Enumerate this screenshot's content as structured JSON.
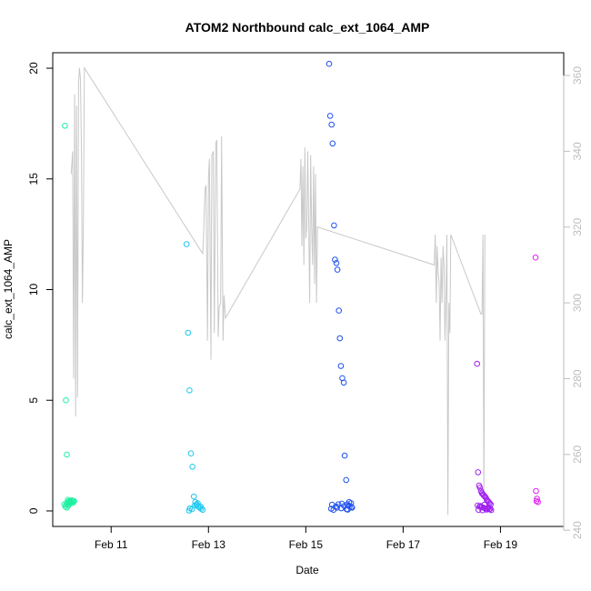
{
  "chart_data": {
    "type": "scatter",
    "title": "ATOM2 Northbound calc_ext_1064_AMP",
    "xlabel": "Date",
    "ylabel": "calc_ext_1064_AMP",
    "xlim": [
      9.8,
      20.3
    ],
    "ylim": [
      -0.7,
      20.7
    ],
    "y2lim": [
      241,
      366
    ],
    "x_ticks": [
      {
        "value": 11,
        "label": "Feb 11"
      },
      {
        "value": 13,
        "label": "Feb 13"
      },
      {
        "value": 15,
        "label": "Feb 15"
      },
      {
        "value": 17,
        "label": "Feb 17"
      },
      {
        "value": 19,
        "label": "Feb 19"
      }
    ],
    "y_ticks": [
      0,
      5,
      10,
      15,
      20
    ],
    "y2_ticks": [
      240,
      260,
      280,
      300,
      320,
      340,
      360
    ],
    "secondary_line": {
      "color": "#c8c8c8",
      "x": [
        10.18,
        10.21,
        10.23,
        10.25,
        10.27,
        10.29,
        10.31,
        10.33,
        10.35,
        10.37,
        10.39,
        10.41,
        10.43,
        10.45,
        12.88,
        12.9,
        12.93,
        12.95,
        12.98,
        13.0,
        13.02,
        13.05,
        13.07,
        13.1,
        13.12,
        13.15,
        13.17,
        13.2,
        13.22,
        13.25,
        13.27,
        13.3,
        13.32,
        13.35,
        14.88,
        14.9,
        14.92,
        14.94,
        14.96,
        14.98,
        15.0,
        15.02,
        15.04,
        15.06,
        15.08,
        15.1,
        15.12,
        15.14,
        15.16,
        15.18,
        15.2,
        15.22,
        15.24,
        17.64,
        17.66,
        17.68,
        17.7,
        17.72,
        17.74,
        17.76,
        17.78,
        17.8,
        17.82,
        17.84,
        17.86,
        17.88,
        17.9,
        17.92,
        17.94,
        17.96,
        17.98,
        18.6,
        18.62,
        18.64,
        18.66,
        18.68
      ],
      "y": [
        334,
        340,
        280,
        355,
        270,
        352,
        275,
        358,
        362,
        359,
        340,
        300,
        320,
        362,
        313,
        318,
        330,
        331,
        290,
        333,
        338,
        285,
        339,
        340,
        292,
        342,
        343,
        291,
        299,
        300,
        344,
        290,
        302,
        296,
        330,
        338,
        315,
        336,
        310,
        341,
        317,
        320,
        340,
        322,
        300,
        339,
        321,
        310,
        336,
        305,
        334,
        300,
        320,
        310,
        318,
        300,
        315,
        308,
        305,
        290,
        312,
        300,
        315,
        310,
        290,
        302,
        318,
        244,
        300,
        292,
        318,
        297,
        297,
        318,
        248,
        318
      ]
    },
    "series": [
      {
        "color": "#1ef0a0",
        "x": [
          10.05,
          10.07,
          10.09,
          10.11,
          10.13,
          10.06,
          10.08,
          10.1,
          10.12,
          10.14,
          10.16,
          10.18,
          10.2,
          10.22,
          10.04,
          10.09,
          10.12,
          10.15,
          10.24,
          10.19,
          10.21
        ],
        "y": [
          17.4,
          5.0,
          2.55,
          0.5,
          0.4,
          0.2,
          0.3,
          0.35,
          0.42,
          0.45,
          0.38,
          0.4,
          0.45,
          0.42,
          0.3,
          0.15,
          0.25,
          0.33,
          0.44,
          0.48,
          0.36
        ]
      },
      {
        "color": "#1ec8f0",
        "x": [
          12.55,
          12.58,
          12.61,
          12.64,
          12.67,
          12.7,
          12.73,
          12.76,
          12.79,
          12.82,
          12.85,
          12.88,
          12.6,
          12.66,
          12.72,
          12.78,
          12.84,
          12.62,
          12.75
        ],
        "y": [
          12.05,
          8.05,
          5.45,
          2.6,
          2.0,
          0.65,
          0.4,
          0.3,
          0.2,
          0.15,
          0.1,
          0.05,
          0.02,
          0.08,
          0.25,
          0.35,
          0.2,
          0.12,
          0.28
        ]
      },
      {
        "color": "#1e50f0",
        "x": [
          15.48,
          15.5,
          15.53,
          15.55,
          15.58,
          15.6,
          15.63,
          15.65,
          15.68,
          15.7,
          15.72,
          15.75,
          15.78,
          15.8,
          15.83,
          15.85,
          15.88,
          15.9,
          15.93,
          15.95,
          15.52,
          15.57,
          15.62,
          15.67,
          15.73,
          15.79,
          15.84,
          15.89,
          15.94,
          15.54,
          15.64,
          15.74,
          15.86
        ],
        "y": [
          20.2,
          17.85,
          17.45,
          16.6,
          12.9,
          11.35,
          11.2,
          10.9,
          9.05,
          7.8,
          6.55,
          6.0,
          5.8,
          2.5,
          1.4,
          0.3,
          0.25,
          0.2,
          0.35,
          0.15,
          0.1,
          0.05,
          0.2,
          0.3,
          0.12,
          0.22,
          0.08,
          0.4,
          0.18,
          0.28,
          0.15,
          0.33,
          0.06
        ]
      },
      {
        "color": "#9f1ef0",
        "x": [
          18.52,
          18.54,
          18.56,
          18.58,
          18.6,
          18.62,
          18.64,
          18.66,
          18.68,
          18.7,
          18.72,
          18.74,
          18.76,
          18.78,
          18.8,
          18.53,
          18.57,
          18.61,
          18.65,
          18.69,
          18.73,
          18.77,
          18.55,
          18.63,
          18.71,
          18.79,
          18.59,
          18.67,
          18.75,
          18.81
        ],
        "y": [
          6.65,
          1.75,
          1.15,
          1.05,
          0.9,
          0.8,
          0.75,
          0.7,
          0.65,
          0.6,
          0.5,
          0.45,
          0.4,
          0.35,
          0.3,
          0.25,
          0.2,
          0.18,
          0.15,
          0.12,
          0.1,
          0.08,
          0.05,
          0.03,
          0.06,
          0.1,
          0.22,
          0.28,
          0.14,
          0.04
        ]
      },
      {
        "color": "#e01ef0",
        "x": [
          19.72,
          19.73,
          19.75,
          19.77,
          19.74
        ],
        "y": [
          11.45,
          0.9,
          0.55,
          0.4,
          0.45
        ]
      }
    ]
  }
}
